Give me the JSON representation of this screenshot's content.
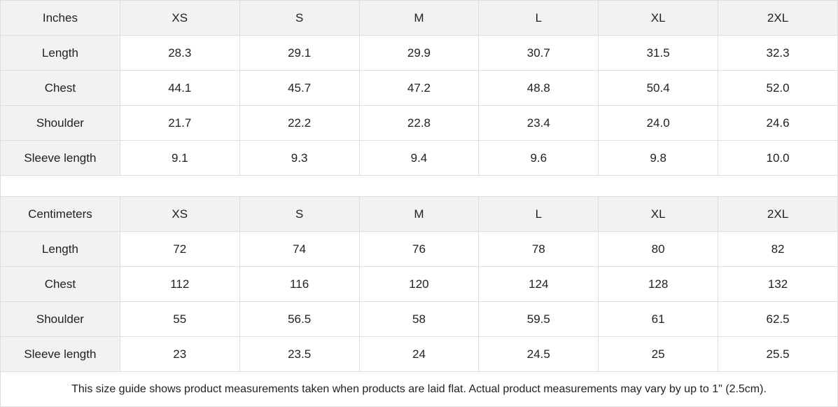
{
  "tables": [
    {
      "unit_label": "Inches",
      "sizes": [
        "XS",
        "S",
        "M",
        "L",
        "XL",
        "2XL"
      ],
      "rows": [
        {
          "label": "Length",
          "values": [
            "28.3",
            "29.1",
            "29.9",
            "30.7",
            "31.5",
            "32.3"
          ]
        },
        {
          "label": "Chest",
          "values": [
            "44.1",
            "45.7",
            "47.2",
            "48.8",
            "50.4",
            "52.0"
          ]
        },
        {
          "label": "Shoulder",
          "values": [
            "21.7",
            "22.2",
            "22.8",
            "23.4",
            "24.0",
            "24.6"
          ]
        },
        {
          "label": "Sleeve length",
          "values": [
            "9.1",
            "9.3",
            "9.4",
            "9.6",
            "9.8",
            "10.0"
          ]
        }
      ]
    },
    {
      "unit_label": "Centimeters",
      "sizes": [
        "XS",
        "S",
        "M",
        "L",
        "XL",
        "2XL"
      ],
      "rows": [
        {
          "label": "Length",
          "values": [
            "72",
            "74",
            "76",
            "78",
            "80",
            "82"
          ]
        },
        {
          "label": "Chest",
          "values": [
            "112",
            "116",
            "120",
            "124",
            "128",
            "132"
          ]
        },
        {
          "label": "Shoulder",
          "values": [
            "55",
            "56.5",
            "58",
            "59.5",
            "61",
            "62.5"
          ]
        },
        {
          "label": "Sleeve length",
          "values": [
            "23",
            "23.5",
            "24",
            "24.5",
            "25",
            "25.5"
          ]
        }
      ]
    }
  ],
  "note": "This size guide shows product measurements taken when products are laid flat.  Actual product measurements may vary by up to 1\" (2.5cm).",
  "colors": {
    "header_bg": "#f2f2f2",
    "border": "#dedede",
    "text": "#222222"
  }
}
